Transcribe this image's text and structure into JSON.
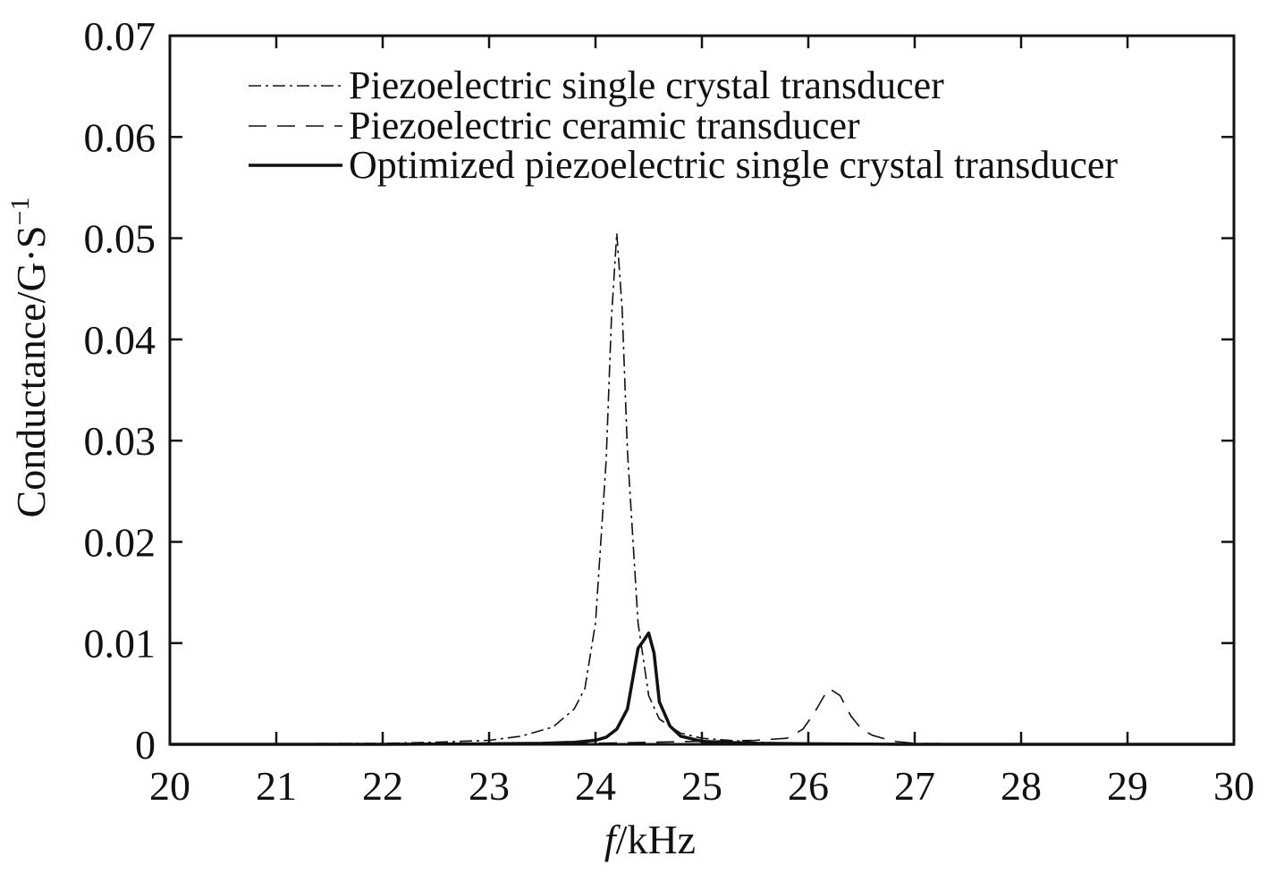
{
  "chart_data": {
    "type": "line",
    "title": "",
    "xlabel_italic": "f",
    "xlabel_rest": "/kHz",
    "ylabel_main": "Conductance/G·S",
    "ylabel_sup": "−1",
    "xlim": [
      20,
      30
    ],
    "ylim": [
      0,
      0.07
    ],
    "xticks": [
      20,
      21,
      22,
      23,
      24,
      25,
      26,
      27,
      28,
      29,
      30
    ],
    "xtick_labels": [
      "20",
      "21",
      "22",
      "23",
      "24",
      "25",
      "26",
      "27",
      "28",
      "29",
      "30"
    ],
    "yticks": [
      0,
      0.01,
      0.02,
      0.03,
      0.04,
      0.05,
      0.06,
      0.07
    ],
    "ytick_labels": [
      "0",
      "0.01",
      "0.02",
      "0.03",
      "0.04",
      "0.05",
      "0.06",
      "0.07"
    ],
    "grid": false,
    "legend_position": "top-left",
    "series": [
      {
        "name": "Piezoelectric single crystal transducer",
        "style": "dashdot",
        "x": [
          20,
          21,
          22,
          22.5,
          23,
          23.3,
          23.6,
          23.8,
          23.9,
          24.0,
          24.1,
          24.15,
          24.2,
          24.25,
          24.3,
          24.4,
          24.5,
          24.6,
          24.8,
          25.0,
          25.5,
          26,
          27,
          28,
          29,
          30
        ],
        "values": [
          0,
          5e-05,
          0.0001,
          0.0002,
          0.0004,
          0.0008,
          0.0017,
          0.0035,
          0.0055,
          0.012,
          0.028,
          0.042,
          0.0505,
          0.043,
          0.029,
          0.012,
          0.0048,
          0.0025,
          0.0011,
          0.0006,
          0.0002,
          0.0001,
          0,
          0,
          0,
          0
        ]
      },
      {
        "name": "Piezoelectric ceramic transducer",
        "style": "dashed",
        "x": [
          20,
          22,
          24,
          25,
          25.5,
          25.8,
          25.95,
          26.05,
          26.15,
          26.2,
          26.3,
          26.4,
          26.5,
          26.6,
          26.8,
          27,
          28,
          29,
          30
        ],
        "values": [
          0,
          0,
          0.0001,
          0.0003,
          0.0004,
          0.0006,
          0.0015,
          0.003,
          0.0048,
          0.0055,
          0.0048,
          0.0028,
          0.0015,
          0.0009,
          0.0003,
          0.0001,
          0,
          0,
          0
        ]
      },
      {
        "name": "Optimized piezoelectric single crystal transducer",
        "style": "solid",
        "x": [
          20,
          22,
          23,
          23.5,
          23.8,
          24.0,
          24.1,
          24.2,
          24.3,
          24.35,
          24.4,
          24.45,
          24.5,
          24.55,
          24.6,
          24.7,
          24.8,
          25.0,
          25.2,
          25.5,
          26,
          27,
          28,
          30
        ],
        "values": [
          0,
          0,
          5e-05,
          0.0001,
          0.0002,
          0.0004,
          0.0007,
          0.0015,
          0.0035,
          0.0065,
          0.0095,
          0.0102,
          0.011,
          0.009,
          0.0042,
          0.0018,
          0.0008,
          0.0003,
          0.0002,
          0.0001,
          5e-05,
          0,
          0,
          0
        ]
      }
    ]
  }
}
